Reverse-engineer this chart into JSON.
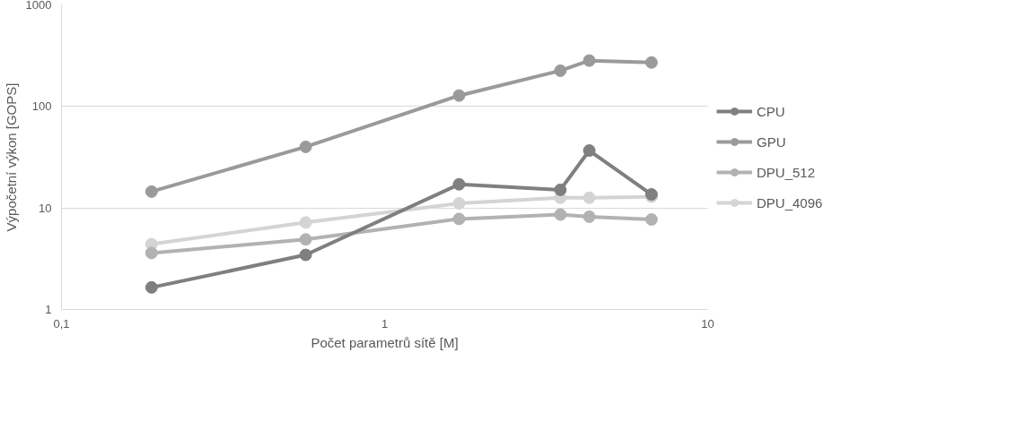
{
  "chart_data": {
    "type": "line",
    "xlabel": "Počet parametrů sítě [M]",
    "ylabel": "Výpočetní výkon [GOPS]",
    "x": [
      0.19,
      0.57,
      1.7,
      3.5,
      4.3,
      6.7
    ],
    "series": [
      {
        "name": "CPU",
        "color": "#7f7f7f",
        "values": [
          1.65,
          3.45,
          17.1,
          15.1,
          36.8,
          13.6
        ]
      },
      {
        "name": "GPU",
        "color": "#9a9a9a",
        "values": [
          14.5,
          40,
          128,
          225,
          283,
          271
        ]
      },
      {
        "name": "DPU_512",
        "color": "#b2b2b2",
        "values": [
          3.6,
          4.9,
          7.8,
          8.6,
          8.2,
          7.7
        ]
      },
      {
        "name": "DPU_4096",
        "color": "#d4d4d4",
        "values": [
          4.4,
          7.2,
          11.1,
          12.6,
          12.6,
          12.9
        ]
      }
    ],
    "log": "xy",
    "xlim": [
      0.1,
      10
    ],
    "ylim": [
      1,
      1000
    ],
    "xticks": [
      {
        "value": 0.1,
        "label": "0,1"
      },
      1,
      10
    ],
    "yticks": [
      1,
      10,
      100,
      1000
    ],
    "grid": "y",
    "legend": "right",
    "marker": "circle",
    "line_style": "solid"
  }
}
